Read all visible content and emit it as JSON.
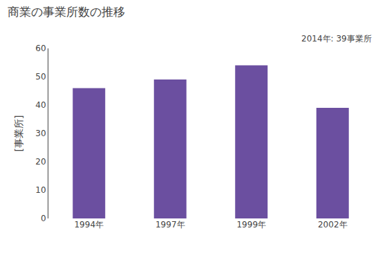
{
  "chart_data": {
    "type": "bar",
    "title": "商業の事業所数の推移",
    "ylabel": "[事業所]",
    "annotation": "2014年: 39事業所",
    "categories": [
      "1994年",
      "1997年",
      "1999年",
      "2002年"
    ],
    "values": [
      46,
      49,
      54,
      39
    ],
    "color": "#6b4fa0",
    "ylim": [
      0,
      60
    ],
    "yticks": [
      0,
      10,
      20,
      30,
      40,
      50,
      60
    ],
    "grid": false
  }
}
